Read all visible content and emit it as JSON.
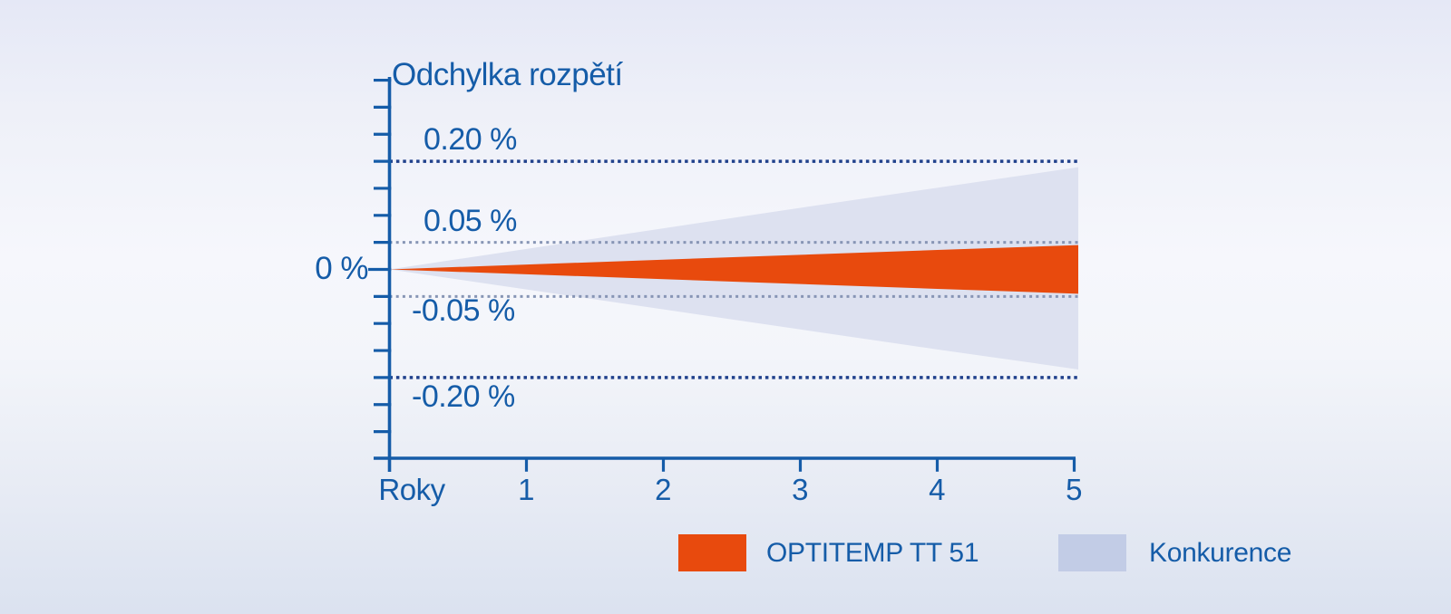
{
  "title": "Odchylka rozpětí",
  "y_axis": {
    "tick_labels": {
      "plus020": "0.20 %",
      "plus005": "0.05 %",
      "zero": "0 %",
      "minus005": "-0.05 %",
      "minus020": "-0.20 %"
    }
  },
  "x_axis": {
    "label": "Roky",
    "tick_labels": [
      "1",
      "2",
      "3",
      "4",
      "5"
    ]
  },
  "legend": {
    "items": [
      {
        "label": "OPTITEMP TT 51",
        "swatch_color": "#e84a0d"
      },
      {
        "label": "Konkurence",
        "swatch_color": "#c2cce6"
      }
    ]
  },
  "colors": {
    "text_blue": "#155ca8",
    "axis_blue": "#155ca8",
    "ref_dark": "#20418c",
    "ref_light": "#8795b5",
    "orange": "#e84a0d",
    "competitor_fill": "#dde1f0",
    "competitor_swatch": "#c2cce6",
    "bg_top": "#e5e8f6",
    "bg_mid": "#f6f7fc",
    "bg_bottom": "#dbe2f0"
  },
  "chart_data": {
    "type": "area",
    "subtype": "symmetric-fan",
    "title": "Odchylka rozpětí",
    "xlabel": "Roky",
    "ylabel": "Odchylka rozpětí (%)",
    "x": [
      0,
      1,
      2,
      3,
      4,
      5
    ],
    "xlim": [
      0,
      5
    ],
    "ylim": [
      -0.3,
      0.35
    ],
    "y_tick_step": 0.05,
    "y_unit": "%",
    "grid": false,
    "legend_position": "bottom-right",
    "series": [
      {
        "name": "OPTITEMP TT 51",
        "color": "#e84a0d",
        "upper": [
          0,
          0.009,
          0.018,
          0.027,
          0.036,
          0.045
        ],
        "lower": [
          0,
          -0.009,
          -0.018,
          -0.027,
          -0.036,
          -0.045
        ]
      },
      {
        "name": "Konkurence",
        "color": "#dde1f0",
        "upper": [
          0,
          0.038,
          0.076,
          0.114,
          0.151,
          0.189
        ],
        "lower": [
          0,
          -0.037,
          -0.074,
          -0.111,
          -0.148,
          -0.185
        ]
      }
    ],
    "reference_lines": [
      {
        "value": 0.2,
        "label": "0.20 %",
        "style": "bold-dotted"
      },
      {
        "value": 0.05,
        "label": "0.05 %",
        "style": "light-dotted"
      },
      {
        "value": -0.05,
        "label": "-0.05 %",
        "style": "light-dotted"
      },
      {
        "value": -0.2,
        "label": "-0.20 %",
        "style": "bold-dotted"
      }
    ],
    "baseline_label": "0 %"
  }
}
